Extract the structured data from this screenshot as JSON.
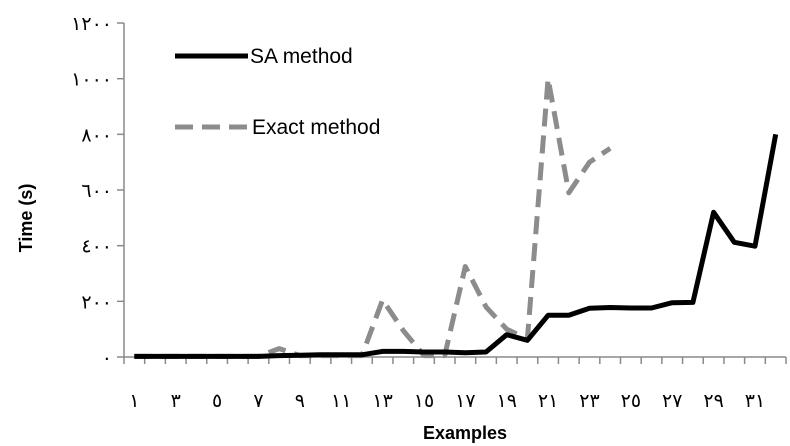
{
  "chart_data": {
    "type": "line",
    "xlabel": "Examples",
    "ylabel": "Time (s)",
    "x_tick_labels": [
      {
        "x": 1,
        "label": "١"
      },
      {
        "x": 3,
        "label": "٣"
      },
      {
        "x": 5,
        "label": "٥"
      },
      {
        "x": 7,
        "label": "٧"
      },
      {
        "x": 9,
        "label": "٩"
      },
      {
        "x": 11,
        "label": "١١"
      },
      {
        "x": 13,
        "label": "١٣"
      },
      {
        "x": 15,
        "label": "١٥"
      },
      {
        "x": 17,
        "label": "١٧"
      },
      {
        "x": 19,
        "label": "١٩"
      },
      {
        "x": 21,
        "label": "٢١"
      },
      {
        "x": 23,
        "label": "٢٣"
      },
      {
        "x": 25,
        "label": "٢٥"
      },
      {
        "x": 27,
        "label": "٢٧"
      },
      {
        "x": 29,
        "label": "٢٩"
      },
      {
        "x": 31,
        "label": "٣١"
      }
    ],
    "y_tick_labels": [
      {
        "y": 0,
        "label": "٠"
      },
      {
        "y": 200,
        "label": "٢٠٠"
      },
      {
        "y": 400,
        "label": "٤٠٠"
      },
      {
        "y": 600,
        "label": "٦٠٠"
      },
      {
        "y": 800,
        "label": "٨٠٠"
      },
      {
        "y": 1000,
        "label": "١٠٠٠"
      },
      {
        "y": 1200,
        "label": "١٢٠٠"
      }
    ],
    "xlim": [
      1,
      32
    ],
    "ylim": [
      0,
      1200
    ],
    "grid": false,
    "legend_position": "top-left",
    "series": [
      {
        "name": "SA method",
        "style": "solid",
        "color": "#000000",
        "x": [
          1,
          2,
          3,
          4,
          5,
          6,
          7,
          8,
          9,
          10,
          11,
          12,
          13,
          14,
          15,
          16,
          17,
          18,
          19,
          20,
          21,
          22,
          23,
          24,
          25,
          26,
          27,
          28,
          29,
          30,
          31,
          32
        ],
        "y": [
          2,
          2,
          2,
          2,
          2,
          2,
          2,
          5,
          6,
          8,
          8,
          8,
          20,
          20,
          18,
          18,
          15,
          18,
          80,
          60,
          150,
          150,
          175,
          178,
          176,
          176,
          195,
          196,
          520,
          412,
          398,
          800
        ]
      },
      {
        "name": "Exact method",
        "style": "dashed",
        "color": "#8c8c8c",
        "x": [
          1,
          2,
          3,
          4,
          5,
          6,
          7,
          8,
          9,
          10,
          11,
          12,
          13,
          14,
          15,
          16,
          17,
          18,
          19,
          20,
          21,
          22,
          23,
          24
        ],
        "y": [
          2,
          2,
          2,
          2,
          2,
          2,
          2,
          30,
          5,
          5,
          5,
          5,
          205,
          95,
          5,
          5,
          325,
          180,
          100,
          65,
          1000,
          590,
          700,
          750
        ]
      }
    ]
  }
}
